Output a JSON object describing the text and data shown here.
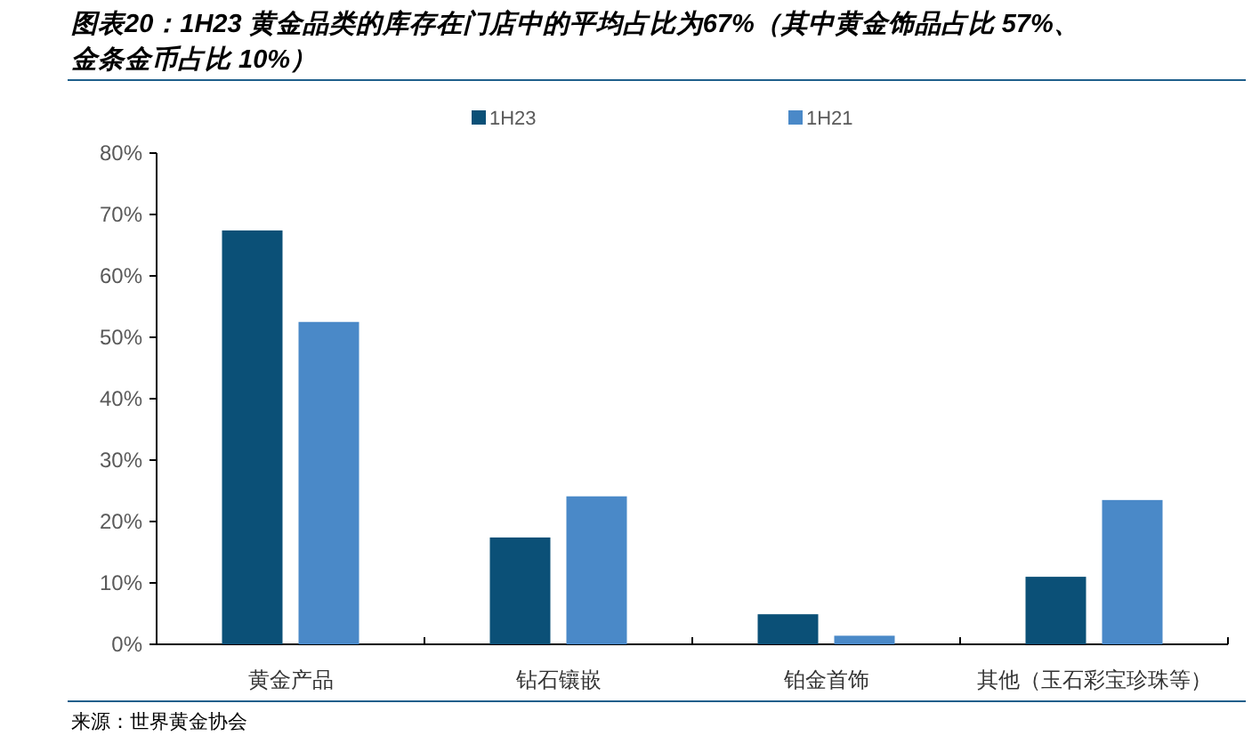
{
  "chart_data": {
    "type": "bar",
    "title": "图表20：1H23 黄金品类的库存在门店中的平均占比为67%（其中黄金饰品占比 57%、金条金币占比 10%）",
    "categories": [
      "黄金产品",
      "钻石镶嵌",
      "铂金首饰",
      "其他（玉石彩宝珍珠等）"
    ],
    "series": [
      {
        "name": "1H23",
        "color": "#0b5077",
        "values": [
          67.4,
          17.4,
          4.9,
          11.0
        ]
      },
      {
        "name": "1H21",
        "color": "#4a89c8",
        "values": [
          52.5,
          24.1,
          1.4,
          23.5
        ]
      }
    ],
    "ylim": [
      0,
      80
    ],
    "yticks": [
      {
        "value": 0,
        "label": "0%"
      },
      {
        "value": 10,
        "label": "10%"
      },
      {
        "value": 20,
        "label": "20%"
      },
      {
        "value": 30,
        "label": "30%"
      },
      {
        "value": 40,
        "label": "40%"
      },
      {
        "value": 50,
        "label": "50%"
      },
      {
        "value": 60,
        "label": "60%"
      },
      {
        "value": 70,
        "label": "70%"
      },
      {
        "value": 80,
        "label": "80%"
      }
    ],
    "legend": "top",
    "annotations": [
      "来源：世界黄金协会"
    ]
  }
}
